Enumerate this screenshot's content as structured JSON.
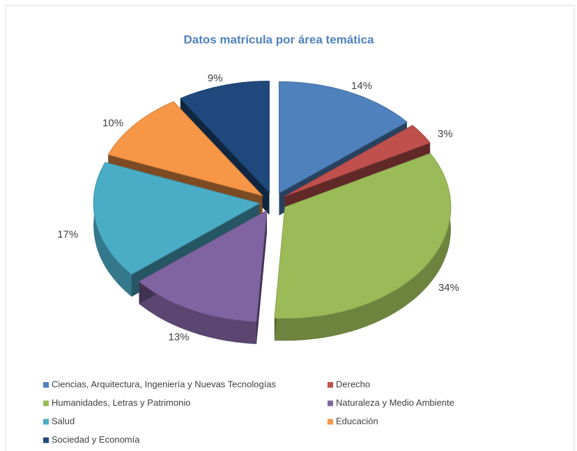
{
  "chart_data": {
    "type": "pie",
    "title": "Datos matrícula por área temática",
    "categories": [
      "Ciencias, Arquitectura, Ingeniería y Nuevas Tecnologías",
      "Derecho",
      "Humanidades, Letras y Patrimonio",
      "Naturaleza y Medio Ambiente",
      "Salud",
      "Educación",
      "Sociedad y Economía"
    ],
    "values": [
      14,
      3,
      34,
      13,
      17,
      10,
      9
    ],
    "value_labels": [
      "14%",
      "3%",
      "34%",
      "13%",
      "17%",
      "10%",
      "9%"
    ],
    "colors": [
      "#4f81bd",
      "#c0504d",
      "#9bbb59",
      "#8064a2",
      "#4bacc6",
      "#f79646",
      "#1f497d"
    ],
    "legend": "bottom"
  }
}
